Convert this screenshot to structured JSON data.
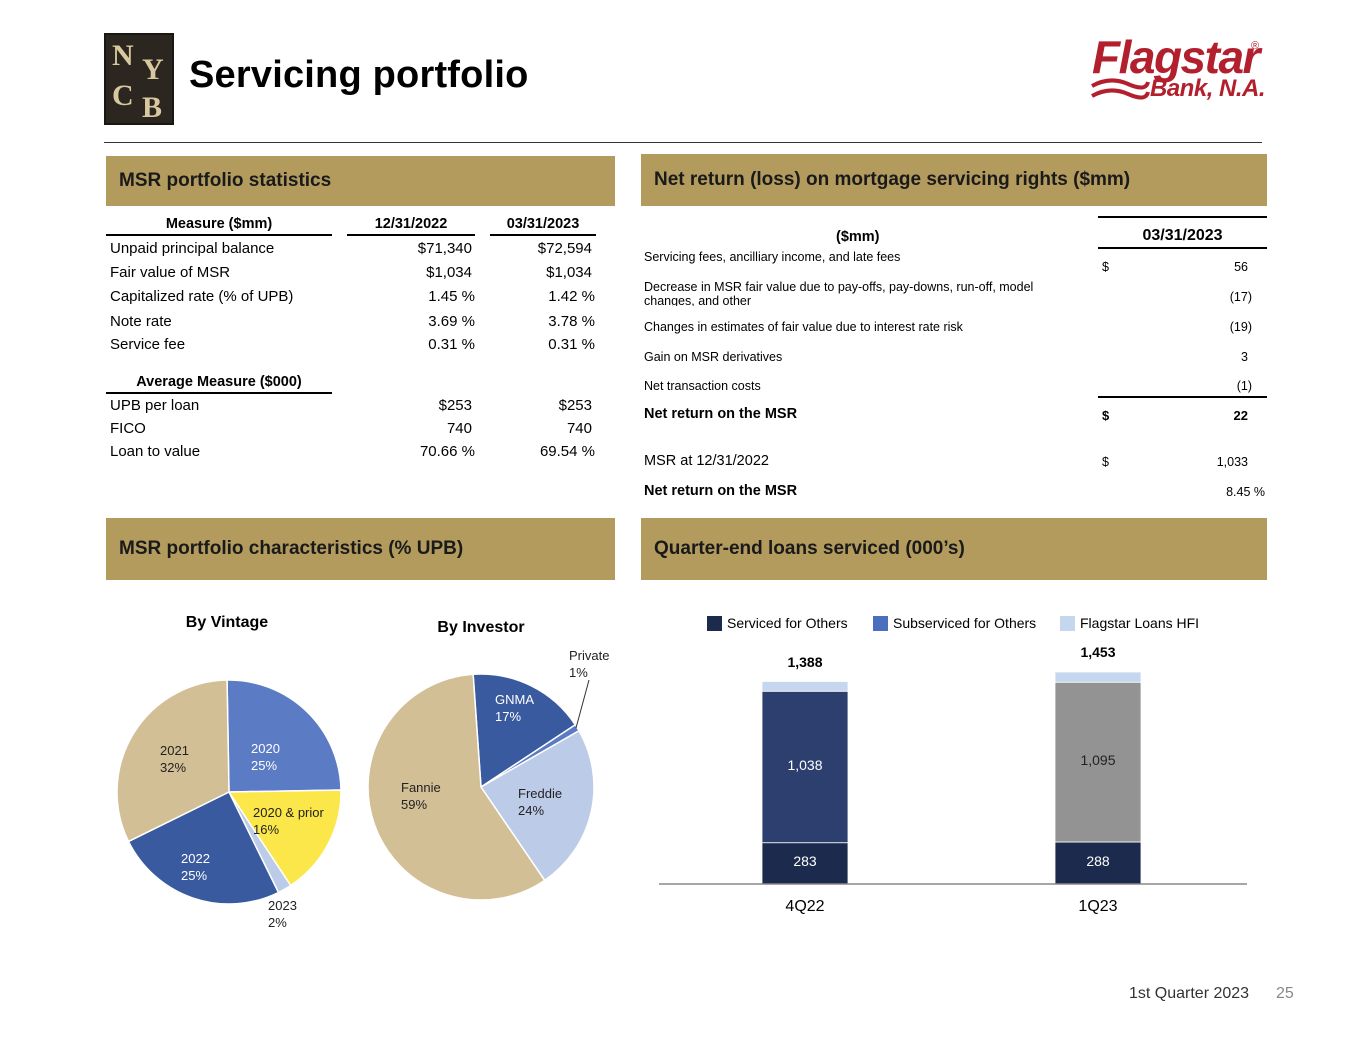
{
  "header": {
    "logo_letters": [
      "N",
      "Y",
      "C",
      "B"
    ],
    "title": "Servicing portfolio",
    "brand_name": "Flagstar",
    "brand_reg": "®",
    "brand_sub": "Bank, N.A."
  },
  "msr_stats": {
    "section_title": "MSR portfolio statistics",
    "col_measure": "Measure ($mm)",
    "col_date1": "12/31/2022",
    "col_date2": "03/31/2023",
    "rows": [
      {
        "label": "Unpaid principal balance",
        "v1": "$71,340",
        "v2": "$72,594"
      },
      {
        "label": "Fair value of MSR",
        "v1": "$1,034",
        "v2": "$1,034"
      },
      {
        "label": "Capitalized rate (% of UPB)",
        "v1": "1.45 %",
        "v2": "1.42 %"
      },
      {
        "label": "Note rate",
        "v1": "3.69 %",
        "v2": "3.78 %"
      },
      {
        "label": "Service fee",
        "v1": "0.31 %",
        "v2": "0.31 %"
      }
    ],
    "avg_header": "Average Measure ($000)",
    "avg_rows": [
      {
        "label": "UPB per loan",
        "v1": "$253",
        "v2": "$253"
      },
      {
        "label": "FICO",
        "v1": "740",
        "v2": "740"
      },
      {
        "label": "Loan to value",
        "v1": "70.66 %",
        "v2": "69.54 %"
      }
    ]
  },
  "net_return": {
    "section_title": "Net return (loss) on mortgage servicing rights ($mm)",
    "col_label": "($mm)",
    "col_date": "03/31/2023",
    "rows": [
      {
        "label": "Servicing fees, ancilliary income, and late fees",
        "cur": "$",
        "value": "56"
      },
      {
        "label": "Decrease in MSR fair value due to pay-offs, pay-downs, run-off, model changes, and other",
        "cur": "",
        "value": "(17)"
      },
      {
        "label": "Changes in estimates of fair value due to interest rate risk",
        "cur": "",
        "value": "(19)"
      },
      {
        "label": "Gain on MSR derivatives",
        "cur": "",
        "value": "3"
      },
      {
        "label": "Net transaction costs",
        "cur": "",
        "value": "(1)"
      }
    ],
    "net_label": "Net return on the MSR",
    "net_cur": "$",
    "net_value": "22",
    "msr_label": "MSR at 12/31/2022",
    "msr_cur": "$",
    "msr_value": "1,033",
    "net_pct_label": "Net return on the MSR",
    "net_pct_value": "8.45 %"
  },
  "characteristics": {
    "section_title": "MSR portfolio characteristics (% UPB)"
  },
  "loans_serviced": {
    "section_title": "Quarter-end loans serviced (000’s)"
  },
  "chart_data": [
    {
      "type": "pie",
      "title": "By Vintage",
      "slices": [
        {
          "label": "2020",
          "value": 25,
          "pct_label": "25%",
          "color": "#5b7bc4"
        },
        {
          "label": "2020 & prior",
          "value": 16,
          "pct_label": "16%",
          "color": "#fce74a"
        },
        {
          "label": "2023",
          "value": 2,
          "pct_label": "2%",
          "color": "#bccbe8"
        },
        {
          "label": "2022",
          "value": 25,
          "pct_label": "25%",
          "color": "#3a5aa0"
        },
        {
          "label": "2021",
          "value": 32,
          "pct_label": "32%",
          "color": "#d3bf95"
        }
      ]
    },
    {
      "type": "pie",
      "title": "By Investor",
      "slices": [
        {
          "label": "GNMA",
          "value": 17,
          "pct_label": "17%",
          "color": "#3a5aa0"
        },
        {
          "label": "Private",
          "value": 1,
          "pct_label": "1%",
          "color": "#5b7bc4"
        },
        {
          "label": "Freddie",
          "value": 24,
          "pct_label": "24%",
          "color": "#bccbe8"
        },
        {
          "label": "Fannie",
          "value": 59,
          "pct_label": "59%",
          "color": "#d3bf95"
        }
      ]
    },
    {
      "type": "bar",
      "stacked": true,
      "title": "",
      "categories": [
        "4Q22",
        "1Q23"
      ],
      "totals": [
        1388,
        1453
      ],
      "total_labels": [
        "1,388",
        "1,453"
      ],
      "legend_position": "top",
      "series": [
        {
          "name": "Serviced for Others",
          "values": [
            283,
            288
          ],
          "labels": [
            "283",
            "288"
          ],
          "color": "#1c2b4d"
        },
        {
          "name": "Subserviced for Others",
          "values": [
            1038,
            1095
          ],
          "labels": [
            "1,038",
            "1,095"
          ],
          "colors": [
            "#2c3f6e",
            "#939393"
          ],
          "legend_color": "#4a6fbe"
        },
        {
          "name": "Flagstar Loans HFI",
          "values": [
            67,
            70
          ],
          "color": "#c5d6ef"
        }
      ]
    }
  ],
  "footer": {
    "period": "1st Quarter 2023",
    "page_number": "25"
  }
}
